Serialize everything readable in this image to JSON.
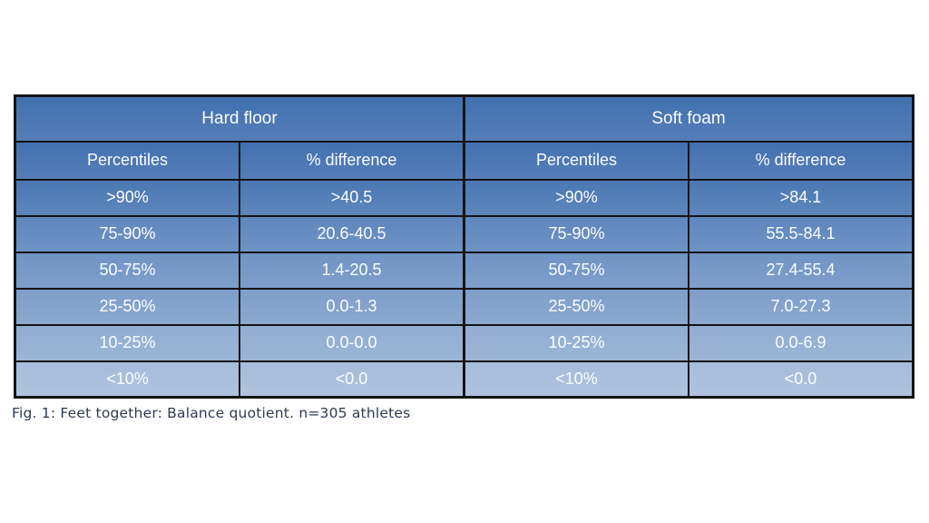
{
  "chart_data": {
    "type": "table",
    "caption": "Fig. 1: Feet together: Balance quotient. n=305 athletes",
    "column_groups": [
      "Hard floor",
      "Soft foam"
    ],
    "columns": [
      "Percentiles",
      "% difference",
      "Percentiles",
      "% difference"
    ],
    "rows": [
      [
        ">90%",
        ">40.5",
        ">90%",
        ">84.1"
      ],
      [
        "75-90%",
        "20.6-40.5",
        "75-90%",
        "55.5-84.1"
      ],
      [
        "50-75%",
        "1.4-20.5",
        "50-75%",
        "27.4-55.4"
      ],
      [
        "25-50%",
        "0.0-1.3",
        "25-50%",
        "7.0-27.3"
      ],
      [
        "10-25%",
        "0.0-0.0",
        "10-25%",
        "0.0-6.9"
      ],
      [
        "<10%",
        "<0.0",
        "<10%",
        "<0.0"
      ]
    ],
    "row_colors": [
      "#4B78B4",
      "#5E87BE",
      "#7094C5",
      "#7E9ECA",
      "#91ADD2",
      "#A6BCDA"
    ],
    "header_color": "#4270B0",
    "border_color": "#141414",
    "cell_text_color": "#FBFDFF",
    "caption_text_color": "#2E3A50",
    "layout_hints": {
      "grid": "all black gridlines",
      "header_rows": 2,
      "shading": "rows fade from dark blue at top to light blue at bottom"
    }
  }
}
